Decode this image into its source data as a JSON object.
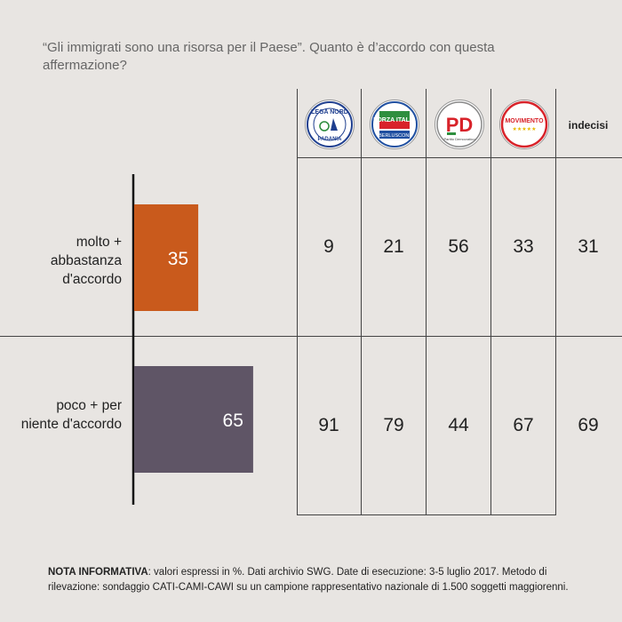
{
  "question": "“Gli immigrati sono una risorsa per il Paese”. Quanto è d’accordo con questa affermazione?",
  "parties": [
    {
      "icon": "lega-nord-logo-icon",
      "logo_text_top": "LEGA NORD",
      "logo_text_bottom": "PADANIA"
    },
    {
      "icon": "forza-italia-logo-icon",
      "logo_text_top": "FORZA ITALIA",
      "logo_text_bottom": "BERLUSCONI"
    },
    {
      "icon": "pd-logo-icon",
      "logo_text_top": "PD",
      "logo_text_bottom": "Partito Democratico"
    },
    {
      "icon": "movimento-5-stelle-logo-icon",
      "logo_text_top": "MOVIMENTO",
      "logo_text_bottom": "★★★★★"
    }
  ],
  "undecided_label": "indecisi",
  "chart_data": {
    "type": "bar",
    "orientation": "horizontal",
    "categories": [
      "molto + abbastanza d'accordo",
      "poco + per niente d'accordo"
    ],
    "values": [
      35,
      65
    ],
    "colors": [
      "#c95a1c",
      "#5f5566"
    ],
    "table": {
      "columns": [
        "Lega Nord",
        "Forza Italia",
        "PD",
        "Movimento 5 Stelle",
        "indecisi"
      ],
      "rows": [
        {
          "label": "molto + abbastanza d'accordo",
          "values": [
            9,
            21,
            56,
            33,
            31
          ]
        },
        {
          "label": "poco + per niente d'accordo",
          "values": [
            91,
            79,
            44,
            67,
            69
          ]
        }
      ]
    }
  },
  "note": {
    "label": "NOTA INFORMATIVA",
    "text": ": valori espressi in %. Dati archivio SWG. Date di esecuzione: 3-5 luglio 2017. Metodo di rilevazione: sondaggio CATI-CAMI-CAWI su un campione rappresentativo nazionale di 1.500 soggetti maggiorenni."
  }
}
